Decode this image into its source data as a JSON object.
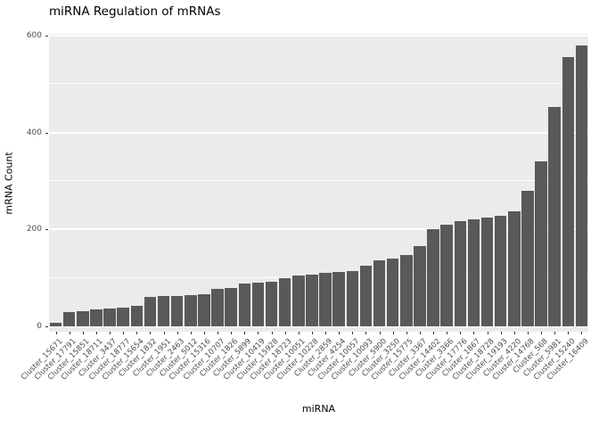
{
  "chart_data": {
    "type": "bar",
    "title": "miRNA Regulation of mRNAs",
    "xlabel": "miRNA",
    "ylabel": "mRNA Count",
    "ylim": [
      0,
      600
    ],
    "yticks": [
      0,
      200,
      400,
      600
    ],
    "grid_major": [
      0,
      200,
      400,
      600
    ],
    "grid_minor": [
      100,
      300,
      500
    ],
    "bar_color": "#595959",
    "panel_color": "#EBEBEB",
    "gridline_color": "#FFFFFF",
    "legend": "none",
    "categories": [
      "Cluster_15671",
      "Cluster_17791",
      "Cluster_15851",
      "Cluster_18711",
      "Cluster_3437",
      "Cluster_18777",
      "Cluster_15654",
      "Cluster_1832",
      "Cluster_1951",
      "Cluster_2463",
      "Cluster_5012",
      "Cluster_15316",
      "Cluster_10707",
      "Cluster_1826",
      "Cluster_5899",
      "Cluster_10419",
      "Cluster_15928",
      "Cluster_18723",
      "Cluster_10051",
      "Cluster_10228",
      "Cluster_2859",
      "Cluster_4254",
      "Cluster_10057",
      "Cluster_10093",
      "Cluster_5900",
      "Cluster_3250",
      "Cluster_15775",
      "Cluster_3367",
      "Cluster_14402",
      "Cluster_3366",
      "Cluster_17776",
      "Cluster_1867",
      "Cluster_18728",
      "Cluster_19193",
      "Cluster_4220",
      "Cluster_14768",
      "Cluster_568",
      "Cluster_5981",
      "Cluster_15240",
      "Cluster_16409"
    ],
    "values": [
      8,
      30,
      32,
      35,
      37,
      38,
      42,
      60,
      62,
      63,
      65,
      67,
      78,
      80,
      88,
      90,
      92,
      100,
      105,
      107,
      110,
      112,
      115,
      125,
      137,
      140,
      147,
      165,
      200,
      210,
      218,
      220,
      224,
      228,
      237,
      280,
      340,
      452,
      555,
      580
    ]
  }
}
